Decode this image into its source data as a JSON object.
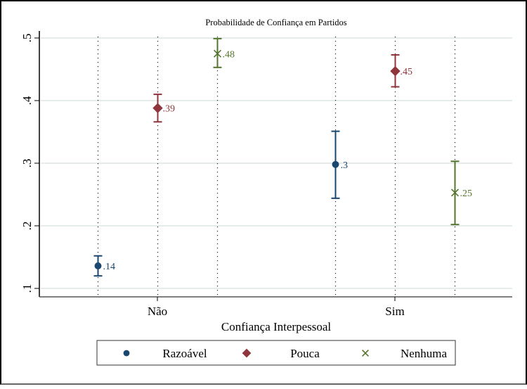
{
  "chart_data": {
    "type": "scatter",
    "title": "Probabilidade de Confiança em Partidos",
    "xlabel": "Confiança Interpessoal",
    "ylabel": "",
    "categories": [
      "Não",
      "Sim"
    ],
    "ylim": [
      0.1,
      0.5
    ],
    "yticks": [
      0.1,
      0.2,
      0.3,
      0.4,
      0.5
    ],
    "ytick_labels": [
      ".1",
      ".2",
      ".3",
      ".4",
      ".5"
    ],
    "grid": true,
    "legend_position": "bottom",
    "series": [
      {
        "name": "Razoável",
        "marker": "circle",
        "color": "#1a476f",
        "values": [
          0.136,
          0.298
        ],
        "ci_low": [
          0.12,
          0.244
        ],
        "ci_high": [
          0.152,
          0.351
        ],
        "labels": [
          ".14",
          ".3"
        ]
      },
      {
        "name": "Pouca",
        "marker": "diamond",
        "color": "#90353b",
        "values": [
          0.388,
          0.447
        ],
        "ci_low": [
          0.366,
          0.422
        ],
        "ci_high": [
          0.41,
          0.473
        ],
        "labels": [
          ".39",
          ".45"
        ]
      },
      {
        "name": "Nenhuma",
        "marker": "x",
        "color": "#55752f",
        "values": [
          0.475,
          0.253
        ],
        "ci_low": [
          0.453,
          0.202
        ],
        "ci_high": [
          0.499,
          0.303
        ],
        "labels": [
          ".48",
          ".25"
        ]
      }
    ]
  }
}
